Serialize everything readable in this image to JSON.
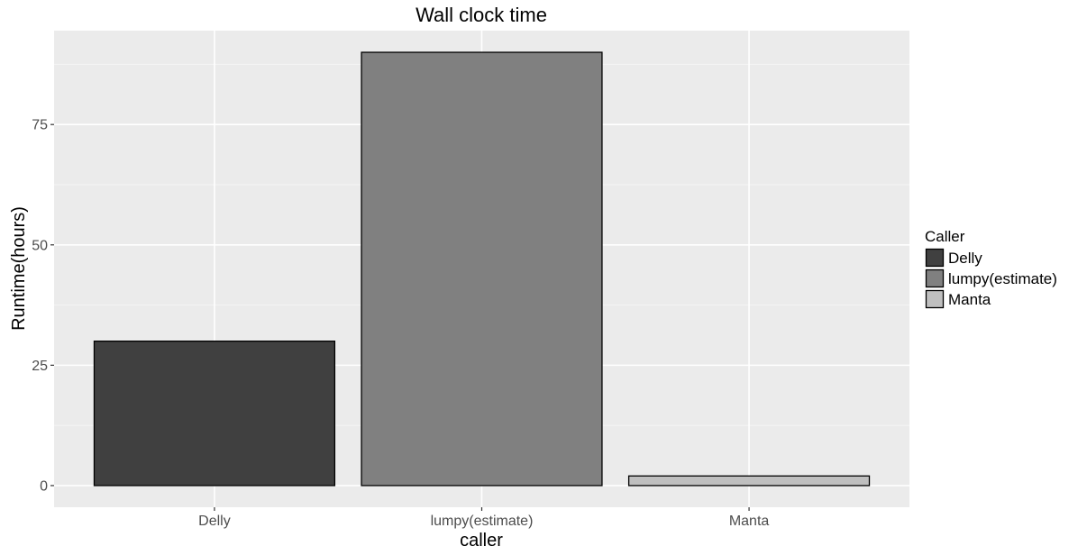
{
  "chart_data": {
    "type": "bar",
    "title": "Wall clock time",
    "xlabel": "caller",
    "ylabel": "Runtime(hours)",
    "categories": [
      "Delly",
      "lumpy(estimate)",
      "Manta"
    ],
    "values": [
      30,
      90,
      2
    ],
    "colors": [
      "#404040",
      "#808080",
      "#bfbfbf"
    ],
    "ylim": [
      -4.5,
      94.5
    ],
    "yticks": [
      0,
      25,
      50,
      75
    ],
    "ytick_labels": [
      "0",
      "25",
      "50",
      "75"
    ],
    "grid": true,
    "panel_background": "#ebebeb",
    "legend": {
      "title": "Caller",
      "position": "right",
      "entries": [
        "Delly",
        "lumpy(estimate)",
        "Manta"
      ]
    }
  }
}
